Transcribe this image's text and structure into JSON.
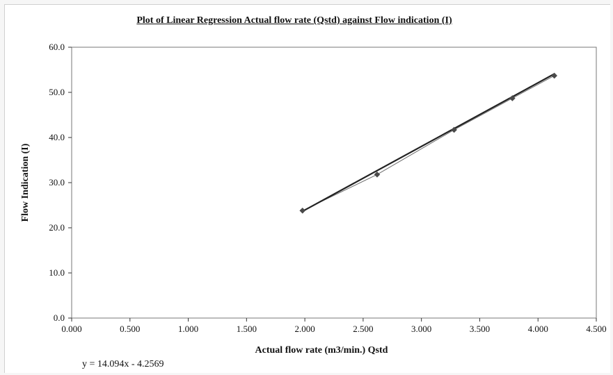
{
  "chart_data": {
    "type": "scatter",
    "title": "Plot of Linear Regression Actual flow rate (Qstd) against Flow indication (I)",
    "xlabel": "Actual flow rate (m3/min.) Qstd",
    "ylabel": "Flow Indication (I)",
    "xlim": [
      0,
      4.5
    ],
    "ylim": [
      0,
      60
    ],
    "xticks": [
      "0.000",
      "0.500",
      "1.000",
      "1.500",
      "2.000",
      "2.500",
      "3.000",
      "3.500",
      "4.000",
      "4.500"
    ],
    "yticks": [
      "0.0",
      "10.0",
      "20.0",
      "30.0",
      "40.0",
      "50.0",
      "60.0"
    ],
    "grid": false,
    "series": [
      {
        "x": [
          1.98,
          2.62,
          3.28,
          3.78,
          4.14
        ],
        "y": [
          23.8,
          31.8,
          41.7,
          48.7,
          53.7
        ],
        "marker": "diamond",
        "color": "#4a4a4a"
      }
    ],
    "trendline": {
      "slope": 14.094,
      "intercept": -4.2569,
      "x_range": [
        1.98,
        4.14
      ],
      "color": "#222222",
      "equation": "y = 14.094x - 4.2569"
    }
  }
}
